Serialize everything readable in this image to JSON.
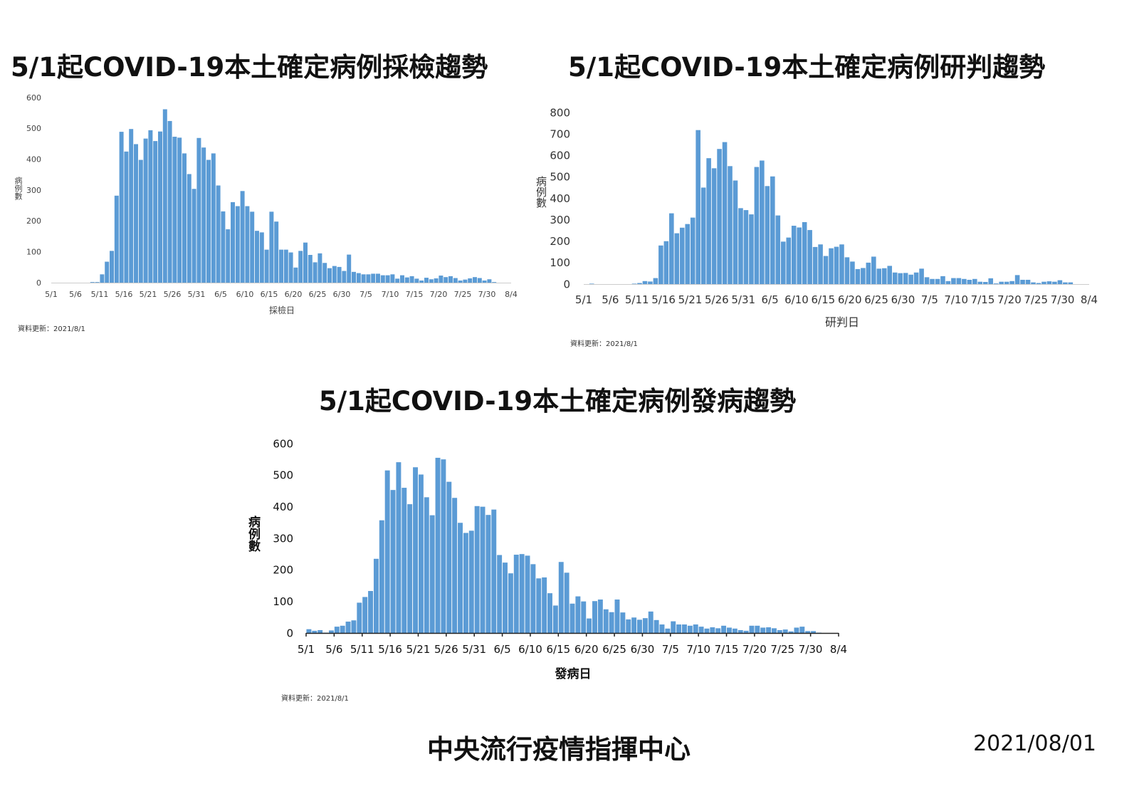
{
  "bar_color": "#5B9BD5",
  "footer": {
    "organization": "中央流行疫情指揮中心",
    "date": "2021/08/01"
  },
  "chart_data": [
    {
      "type": "bar",
      "title": "5/1起COVID-19本土確定病例採檢趨勢",
      "xlabel": "採檢日",
      "ylabel": "病例數",
      "update_note": "資料更新：2021/8/1",
      "ylim": [
        0,
        600
      ],
      "y_ticks": [
        0,
        100,
        200,
        300,
        400,
        500,
        600
      ],
      "x_start": "5/1",
      "x_ticks": [
        "5/1",
        "5/6",
        "5/11",
        "5/16",
        "5/21",
        "5/26",
        "5/31",
        "6/5",
        "6/10",
        "6/15",
        "6/20",
        "6/25",
        "6/30",
        "7/5",
        "7/10",
        "7/15",
        "7/20",
        "7/25",
        "7/30",
        "8/4"
      ],
      "values": [
        0,
        0,
        0,
        0,
        0,
        0,
        0,
        0,
        2,
        2,
        27,
        68,
        103,
        282,
        489,
        425,
        498,
        449,
        398,
        467,
        494,
        459,
        490,
        562,
        524,
        473,
        470,
        419,
        352,
        304,
        469,
        438,
        398,
        419,
        315,
        231,
        173,
        261,
        248,
        297,
        248,
        230,
        168,
        163,
        107,
        230,
        198,
        107,
        107,
        98,
        49,
        103,
        130,
        90,
        66,
        95,
        64,
        47,
        54,
        51,
        38,
        91,
        35,
        31,
        27,
        27,
        29,
        29,
        24,
        24,
        27,
        13,
        24,
        17,
        21,
        13,
        7,
        16,
        11,
        14,
        23,
        18,
        21,
        15,
        7,
        10,
        14,
        18,
        15,
        7,
        11,
        2
      ]
    },
    {
      "type": "bar",
      "title": "5/1起COVID-19本土確定病例研判趨勢",
      "xlabel": "研判日",
      "ylabel": "病例數",
      "update_note": "資料更新：2021/8/1",
      "ylim": [
        0,
        800
      ],
      "y_ticks": [
        0,
        100,
        200,
        300,
        400,
        500,
        600,
        700,
        800
      ],
      "x_start": "5/1",
      "x_ticks": [
        "5/1",
        "5/6",
        "5/11",
        "5/16",
        "5/21",
        "5/26",
        "5/31",
        "6/5",
        "6/10",
        "6/15",
        "6/20",
        "6/25",
        "6/30",
        "7/5",
        "7/10",
        "7/15",
        "7/20",
        "7/25",
        "7/30",
        "8/4"
      ],
      "values": [
        0,
        2,
        0,
        0,
        0,
        0,
        0,
        0,
        0,
        2,
        5,
        14,
        12,
        28,
        180,
        200,
        330,
        237,
        263,
        280,
        310,
        718,
        450,
        587,
        540,
        630,
        662,
        550,
        483,
        354,
        345,
        325,
        546,
        576,
        457,
        502,
        320,
        198,
        217,
        272,
        264,
        289,
        252,
        173,
        185,
        131,
        167,
        174,
        185,
        125,
        105,
        70,
        75,
        100,
        128,
        72,
        74,
        85,
        54,
        51,
        52,
        44,
        54,
        72,
        32,
        24,
        24,
        37,
        14,
        28,
        28,
        24,
        20,
        24,
        11,
        10,
        27,
        3,
        11,
        11,
        14,
        42,
        20,
        20,
        8,
        5,
        11,
        13,
        11,
        18,
        8,
        8
      ]
    },
    {
      "type": "bar",
      "title": "5/1起COVID-19本土確定病例發病趨勢",
      "xlabel": "發病日",
      "ylabel": "病例數",
      "update_note": "資料更新：2021/8/1",
      "ylim": [
        0,
        600
      ],
      "y_ticks": [
        0,
        100,
        200,
        300,
        400,
        500,
        600
      ],
      "x_start": "5/1",
      "x_ticks": [
        "5/1",
        "5/6",
        "5/11",
        "5/16",
        "5/21",
        "5/26",
        "5/31",
        "6/5",
        "6/10",
        "6/15",
        "6/20",
        "6/25",
        "6/30",
        "7/5",
        "7/10",
        "7/15",
        "7/20",
        "7/25",
        "7/30",
        "8/4"
      ],
      "values": [
        12,
        7,
        9,
        1,
        8,
        20,
        23,
        36,
        40,
        96,
        114,
        133,
        235,
        357,
        515,
        453,
        541,
        460,
        408,
        525,
        502,
        430,
        373,
        555,
        550,
        479,
        428,
        349,
        317,
        324,
        402,
        400,
        374,
        391,
        247,
        223,
        189,
        248,
        250,
        245,
        218,
        173,
        176,
        126,
        87,
        225,
        191,
        93,
        116,
        100,
        46,
        101,
        106,
        75,
        66,
        106,
        65,
        43,
        49,
        42,
        47,
        68,
        41,
        27,
        14,
        37,
        27,
        27,
        23,
        27,
        20,
        14,
        18,
        15,
        23,
        17,
        14,
        9,
        7,
        23,
        23,
        17,
        18,
        15,
        9,
        11,
        5,
        17,
        20,
        6,
        6,
        1
      ]
    }
  ]
}
